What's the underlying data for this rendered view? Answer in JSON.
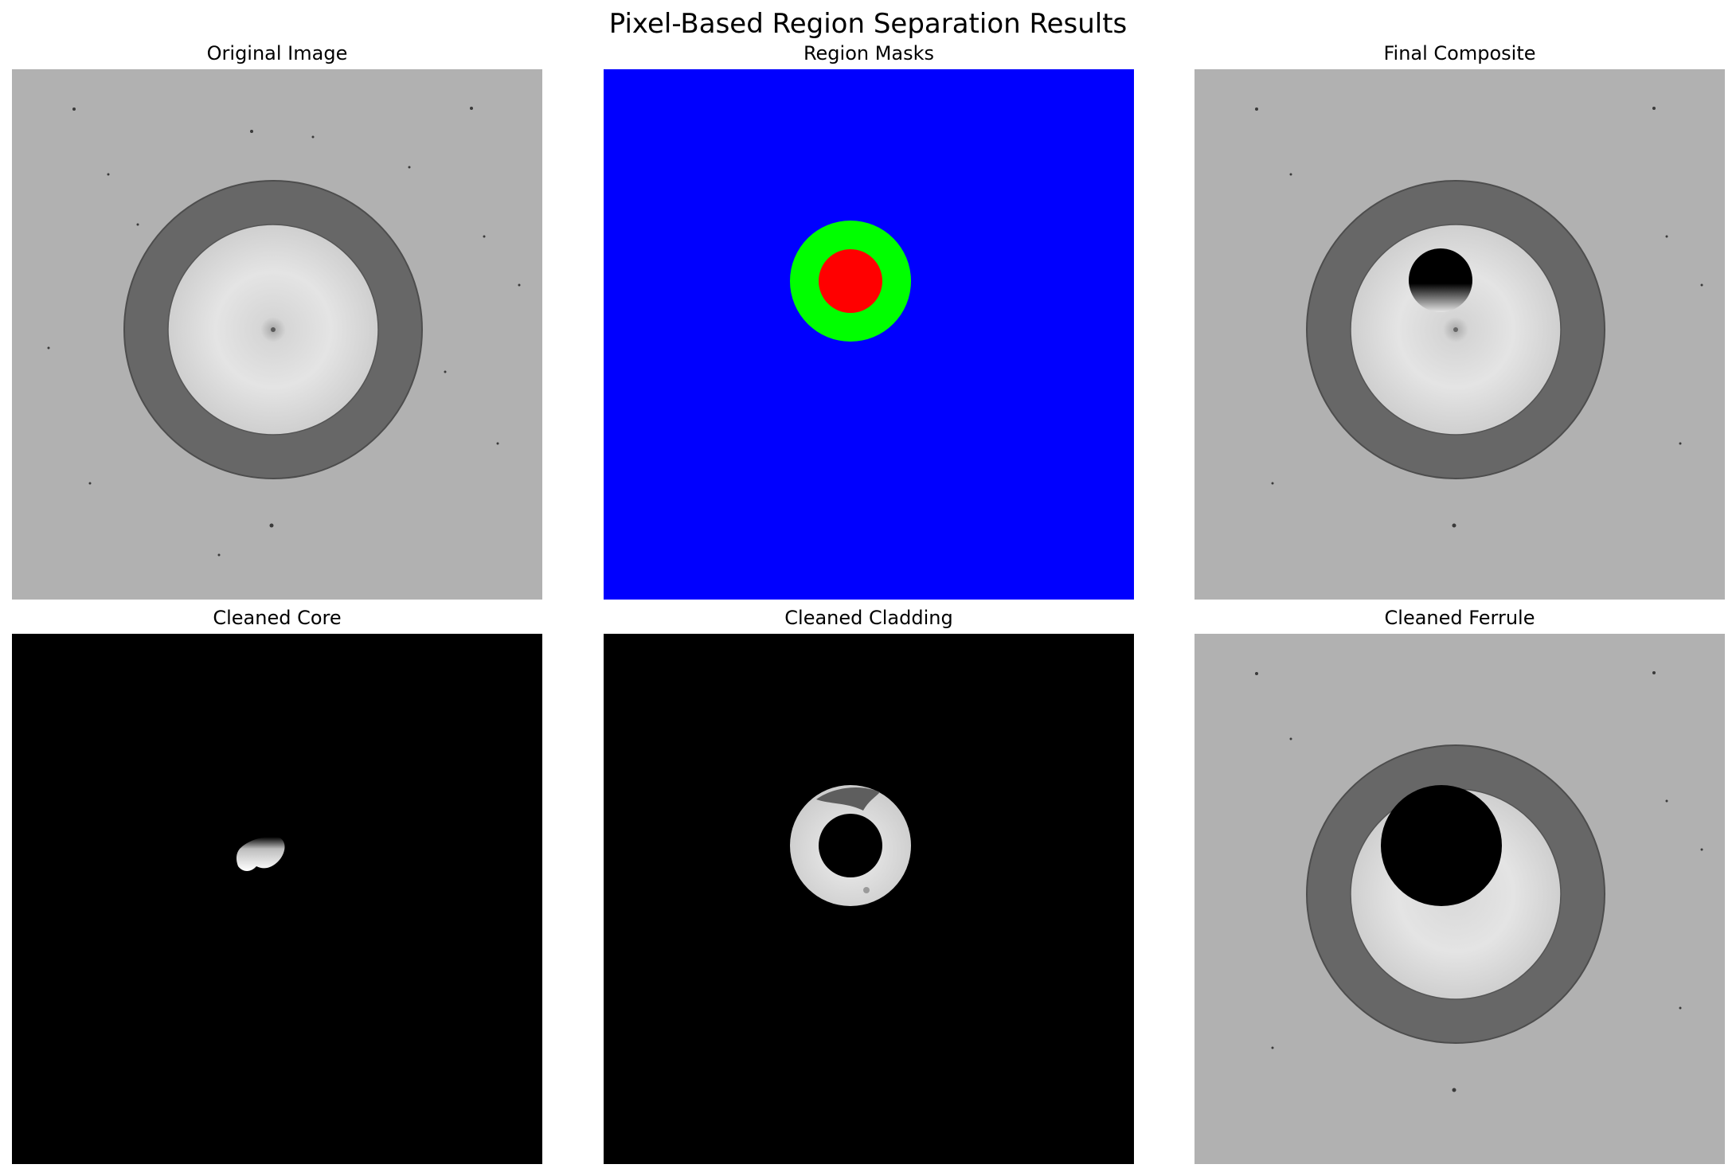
{
  "figure": {
    "title": "Pixel-Based Region Separation Results"
  },
  "panels": [
    {
      "title": "Original Image"
    },
    {
      "title": "Region Masks"
    },
    {
      "title": "Final Composite"
    },
    {
      "title": "Cleaned Core"
    },
    {
      "title": "Cleaned Cladding"
    },
    {
      "title": "Cleaned Ferrule"
    }
  ],
  "colors": {
    "background_gray": "#b1b1b1",
    "ring_gray": "#676767",
    "mask_ferrule": "#0000ff",
    "mask_cladding": "#00ff00",
    "mask_core": "#ff0000",
    "black": "#000000"
  }
}
